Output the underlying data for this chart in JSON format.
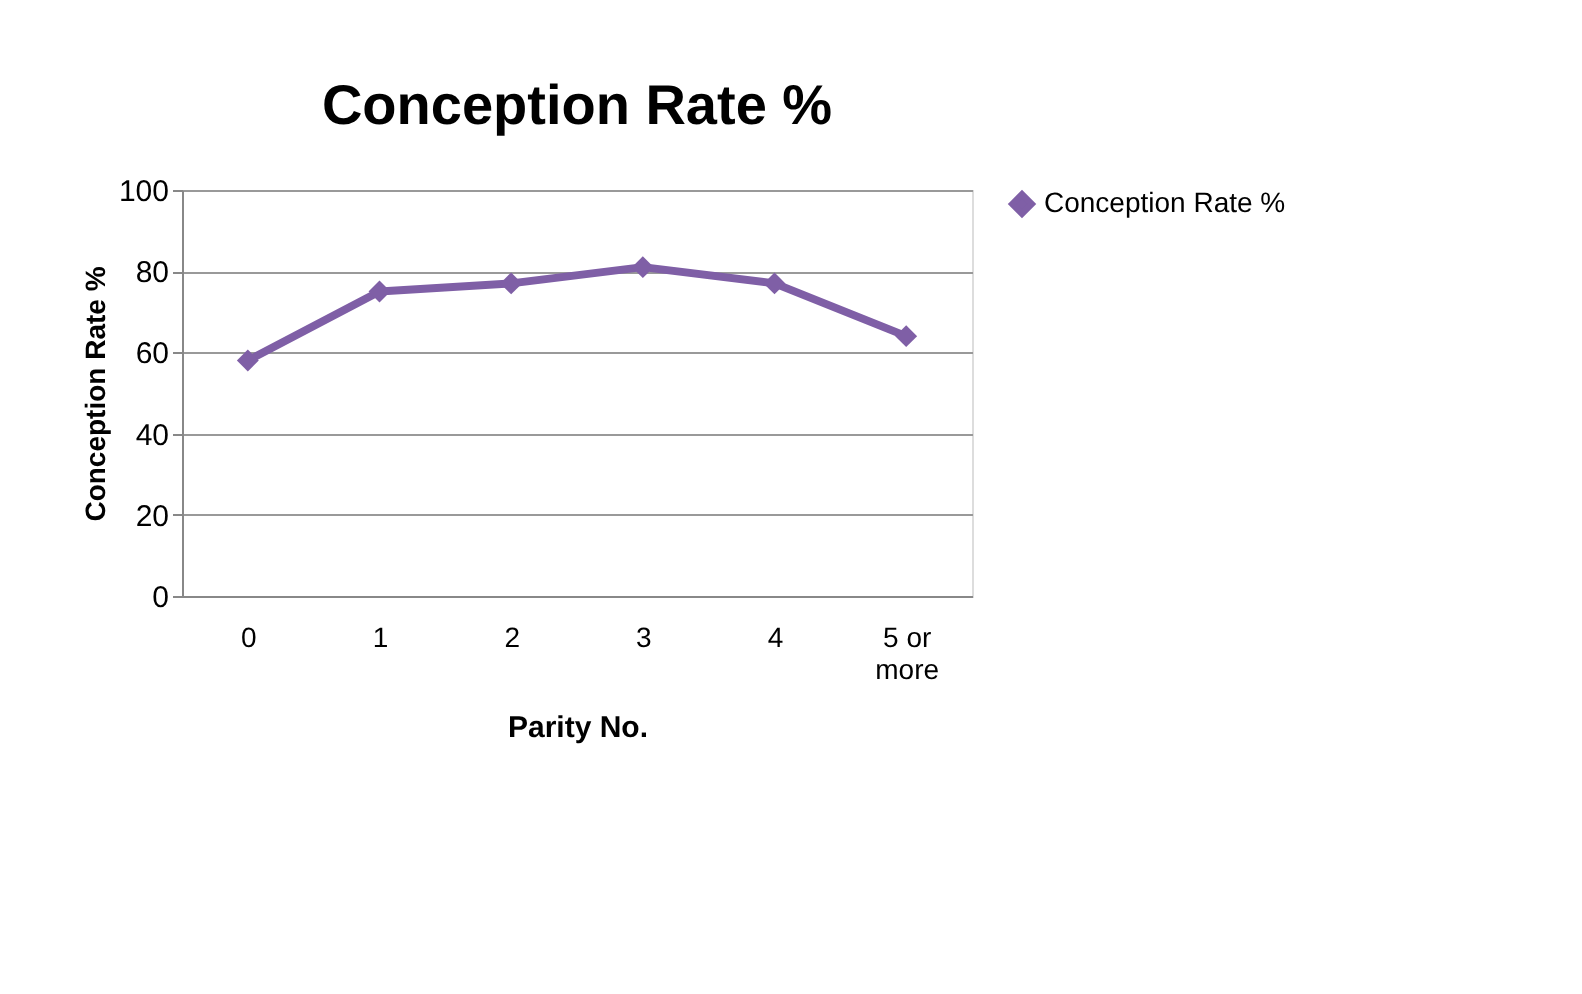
{
  "chart_data": {
    "type": "line",
    "title": "Conception Rate %",
    "xlabel": "Parity No.",
    "ylabel": "Conception Rate %",
    "categories": [
      "0",
      "1",
      "2",
      "3",
      "4",
      "5 or more"
    ],
    "series": [
      {
        "name": "Conception Rate %",
        "color": "#7f5fa6",
        "values": [
          58,
          75,
          77,
          81,
          77,
          64
        ]
      }
    ],
    "ylim": [
      0,
      100
    ],
    "yticks": [
      0,
      20,
      40,
      60,
      80,
      100
    ],
    "grid": "y",
    "legend": "right",
    "marker": "diamond",
    "line_style": "solid"
  }
}
